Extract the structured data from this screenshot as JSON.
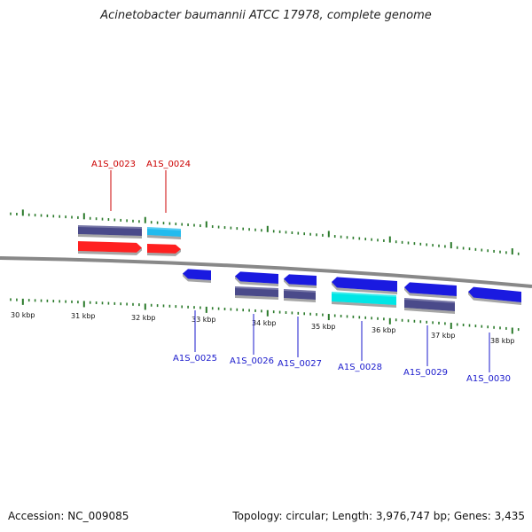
{
  "title": "Acinetobacter baumannii ATCC 17978, complete genome",
  "footer": {
    "accession": "Accession: NC_009085",
    "summary": "Topology: circular; Length: 3,976,747 bp; Genes: 3,435"
  },
  "colors": {
    "backbone": "#888888",
    "tick": "#2a7a2a",
    "label_red": "#cc0000",
    "label_blue": "#1a1acc",
    "cds_red": "#ff2020",
    "cds_darkblue": "#1a1ae0",
    "rna_slate": "#4a4a8a",
    "rna_cyan": "#22bbee",
    "rna_brightcyan": "#00e6e6"
  },
  "scale": {
    "labels": [
      "30 kbp",
      "31 kbp",
      "32 kbp",
      "33 kbp",
      "34 kbp",
      "35 kbp",
      "36 kbp",
      "37 kbp",
      "38 kbp"
    ]
  },
  "genes": [
    {
      "label": "A1S_0023",
      "strand": "forward",
      "color": "label_red"
    },
    {
      "label": "A1S_0024",
      "strand": "forward",
      "color": "label_red"
    },
    {
      "label": "A1S_0025",
      "strand": "reverse",
      "color": "label_blue"
    },
    {
      "label": "A1S_0026",
      "strand": "reverse",
      "color": "label_blue"
    },
    {
      "label": "A1S_0027",
      "strand": "reverse",
      "color": "label_blue"
    },
    {
      "label": "A1S_0028",
      "strand": "reverse",
      "color": "label_blue"
    },
    {
      "label": "A1S_0029",
      "strand": "reverse",
      "color": "label_blue"
    },
    {
      "label": "A1S_0030",
      "strand": "reverse",
      "color": "label_blue"
    }
  ]
}
